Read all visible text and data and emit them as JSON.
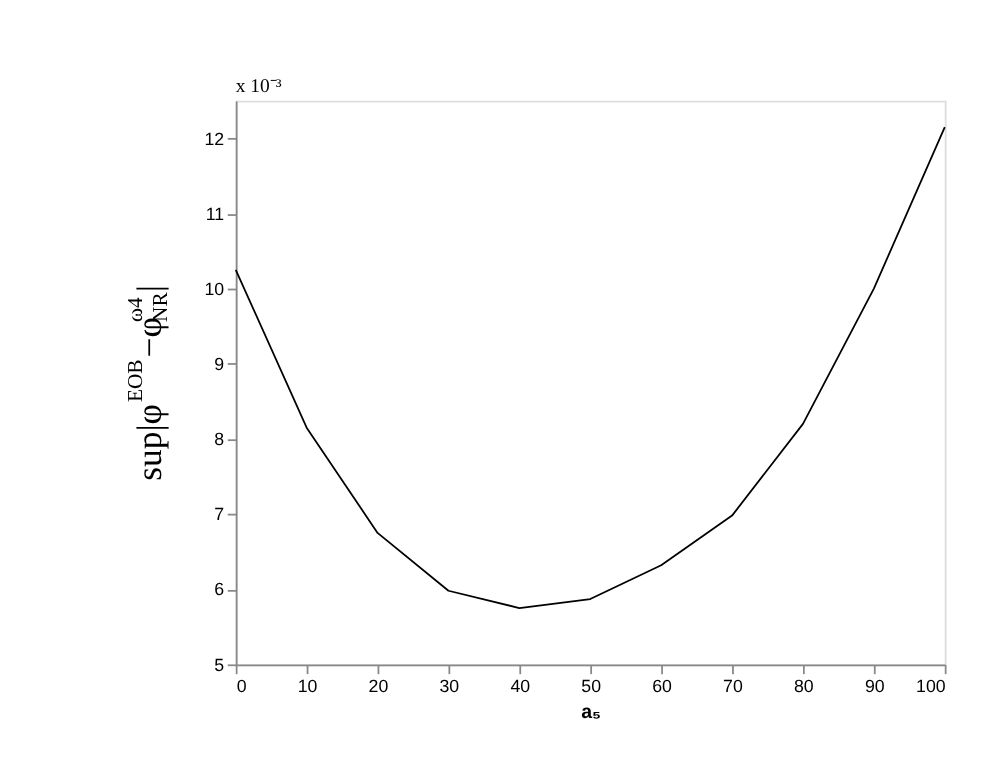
{
  "chart_data": {
    "type": "line",
    "x": [
      0,
      10,
      20,
      30,
      40,
      50,
      60,
      70,
      80,
      90,
      100
    ],
    "series": [
      {
        "color": "#000000",
        "values": [
          10.25,
          8.15,
          6.75,
          5.98,
          5.75,
          5.87,
          6.32,
          6.98,
          8.2,
          10.0,
          12.15
        ]
      }
    ],
    "xlim": [
      0,
      100
    ],
    "xticks": [
      0,
      10,
      20,
      30,
      40,
      50,
      60,
      70,
      80,
      90,
      100
    ],
    "ylim": [
      5,
      12.5
    ],
    "yticks": [
      5,
      6,
      7,
      8,
      9,
      10,
      11,
      12
    ],
    "xlabel": "a₅",
    "ylabel": "sup|φ$^{EOB}$−φ$_{NR}$$^{ω4}$|",
    "annotations": [
      "x 10⁻³"
    ],
    "grid": false,
    "marker": "none",
    "line_style": "solid"
  }
}
